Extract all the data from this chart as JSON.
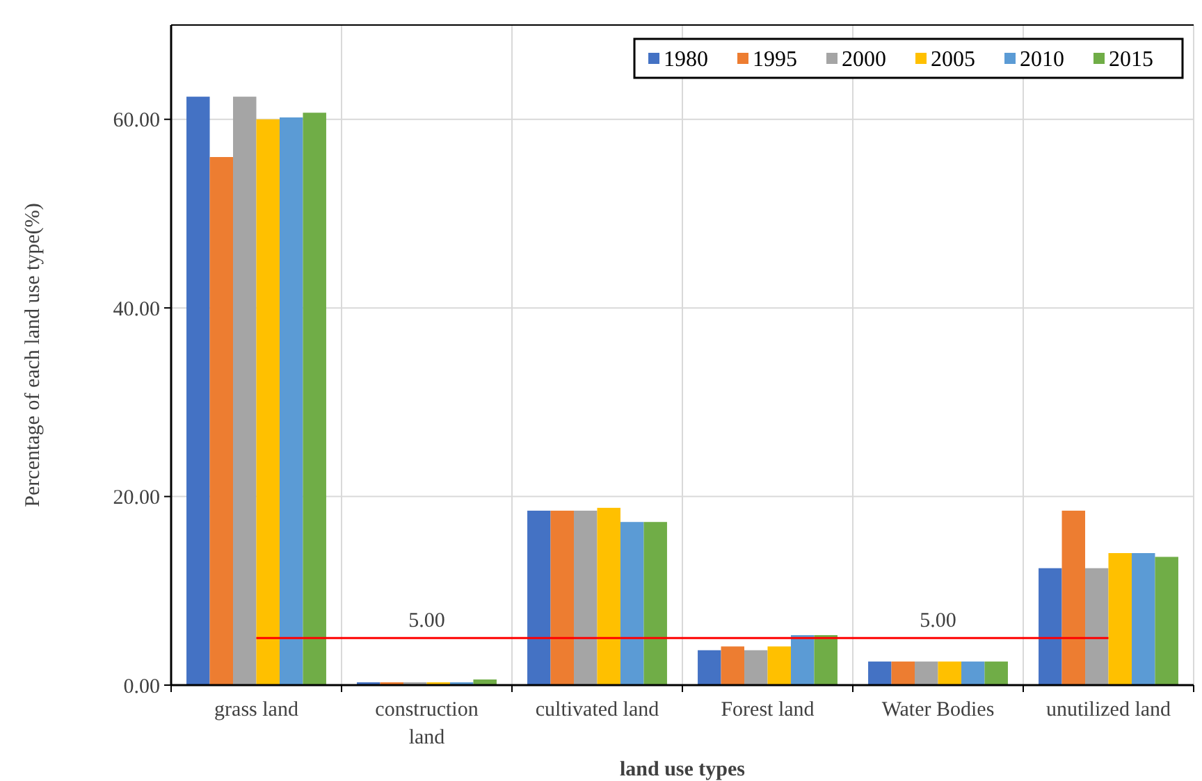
{
  "chart_data": {
    "type": "bar",
    "xlabel": "land  use types",
    "ylabel": "Percentage of each land use type(%)",
    "categories": [
      "grass land",
      "construction\nland",
      "cultivated land",
      "Forest land",
      "Water Bodies",
      "unutilized land"
    ],
    "series": [
      {
        "name": "1980",
        "color": "#4472c4",
        "values": [
          62.4,
          0.3,
          18.5,
          3.7,
          2.5,
          12.4
        ]
      },
      {
        "name": "1995",
        "color": "#ed7d31",
        "values": [
          56.0,
          0.3,
          18.5,
          4.1,
          2.5,
          18.5
        ]
      },
      {
        "name": "2000",
        "color": "#a5a5a5",
        "values": [
          62.4,
          0.3,
          18.5,
          3.7,
          2.5,
          12.4
        ]
      },
      {
        "name": "2005",
        "color": "#ffc000",
        "values": [
          60.0,
          0.3,
          18.8,
          4.1,
          2.5,
          14.0
        ]
      },
      {
        "name": "2010",
        "color": "#5b9bd5",
        "values": [
          60.2,
          0.3,
          17.3,
          5.3,
          2.5,
          14.0
        ]
      },
      {
        "name": "2015",
        "color": "#70ad47",
        "values": [
          60.7,
          0.6,
          17.3,
          5.3,
          2.5,
          13.6
        ]
      },
      {
        "type": "line",
        "color": "#ff0000",
        "values": [
          5,
          5,
          5,
          5,
          5,
          5
        ],
        "value_labels": [
          null,
          "5.00",
          null,
          null,
          "5.00",
          null
        ]
      }
    ],
    "ylim": [
      0,
      70
    ],
    "yticks": [
      {
        "value": 0,
        "label": "0.00"
      },
      {
        "value": 20,
        "label": "20.00"
      },
      {
        "value": 40,
        "label": "40.00"
      },
      {
        "value": 60,
        "label": "60.00"
      }
    ],
    "grid": true,
    "legend": "top right",
    "marker": "none"
  }
}
